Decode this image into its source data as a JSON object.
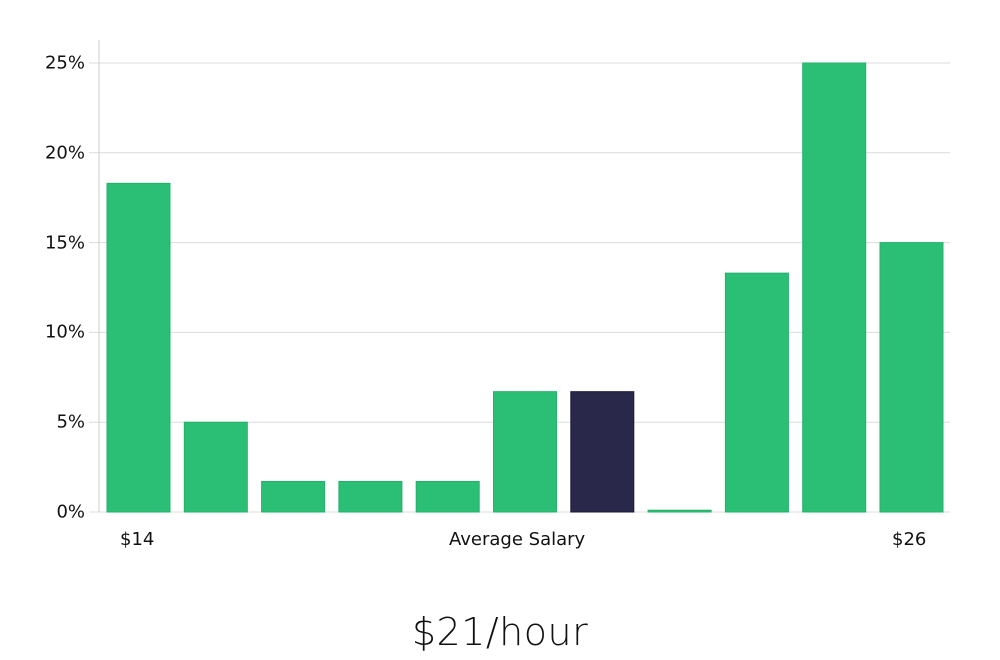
{
  "chart_data": {
    "type": "bar",
    "title": "",
    "xlabel": "Average Salary",
    "ylabel": "",
    "x_tick_labels": [
      {
        "label": "$14",
        "position": "first"
      },
      {
        "label": "Average Salary",
        "position": "center"
      },
      {
        "label": "$26",
        "position": "last"
      }
    ],
    "categories": [
      "bin1",
      "bin2",
      "bin3",
      "bin4",
      "bin5",
      "bin6",
      "bin7",
      "bin8",
      "bin9",
      "bin10",
      "bin11"
    ],
    "values": [
      18.3,
      5.0,
      1.7,
      1.7,
      1.7,
      6.7,
      6.7,
      0.1,
      13.3,
      25.0,
      15.0
    ],
    "highlight_index": 6,
    "ylim": [
      0,
      25
    ],
    "y_ticks": [
      "0%",
      "5%",
      "10%",
      "15%",
      "20%",
      "25%"
    ],
    "grid": true,
    "legend": null,
    "colors": {
      "bar": "#2bbf76",
      "highlight": "#29274a",
      "grid": "#dcdcdc",
      "axis": "#cccccc"
    }
  },
  "labels": {
    "min": "$14",
    "center": "Average Salary",
    "max": "$26"
  },
  "footer": {
    "salary": "$21/hour"
  }
}
